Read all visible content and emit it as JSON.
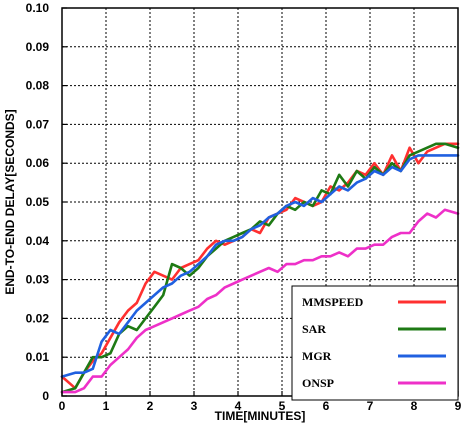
{
  "chart_data": {
    "type": "line",
    "title": "",
    "xlabel": "TIME[MINUTES]",
    "ylabel": "END-TO-END DELAY[SECONDS]",
    "xlim": [
      0,
      9
    ],
    "ylim": [
      0,
      0.1
    ],
    "x_ticks": [
      "0",
      "1",
      "2",
      "3",
      "4",
      "5",
      "6",
      "7",
      "8",
      "9"
    ],
    "y_ticks": [
      "0",
      "0.01",
      "0.02",
      "0.03",
      "0.04",
      "0.05",
      "0.06",
      "0.07",
      "0.08",
      "0.09",
      "0.10"
    ],
    "grid": true,
    "legend_position": "bottom-right",
    "series": [
      {
        "name": "MMSPEED",
        "color": "#ff3030",
        "x": [
          0,
          0.3,
          0.5,
          0.7,
          0.9,
          1.1,
          1.3,
          1.5,
          1.7,
          1.9,
          2.1,
          2.3,
          2.5,
          2.7,
          2.9,
          3.1,
          3.3,
          3.5,
          3.7,
          3.9,
          4.1,
          4.3,
          4.5,
          4.7,
          4.9,
          5.1,
          5.3,
          5.5,
          5.7,
          5.9,
          6.1,
          6.3,
          6.5,
          6.7,
          6.9,
          7.1,
          7.3,
          7.5,
          7.7,
          7.9,
          8.1,
          8.3,
          8.5,
          8.7,
          9.0
        ],
        "y": [
          0.005,
          0.002,
          0.006,
          0.009,
          0.011,
          0.015,
          0.019,
          0.022,
          0.024,
          0.029,
          0.032,
          0.031,
          0.03,
          0.033,
          0.034,
          0.035,
          0.038,
          0.04,
          0.039,
          0.04,
          0.041,
          0.043,
          0.042,
          0.046,
          0.047,
          0.048,
          0.051,
          0.05,
          0.049,
          0.05,
          0.054,
          0.053,
          0.055,
          0.058,
          0.057,
          0.06,
          0.057,
          0.062,
          0.058,
          0.064,
          0.06,
          0.063,
          0.064,
          0.065,
          0.065
        ]
      },
      {
        "name": "SAR",
        "color": "#1e7a14",
        "x": [
          0,
          0.3,
          0.5,
          0.7,
          0.9,
          1.1,
          1.3,
          1.5,
          1.7,
          1.9,
          2.1,
          2.3,
          2.5,
          2.7,
          2.9,
          3.1,
          3.3,
          3.5,
          3.7,
          3.9,
          4.1,
          4.3,
          4.5,
          4.7,
          4.9,
          5.1,
          5.3,
          5.5,
          5.7,
          5.9,
          6.1,
          6.3,
          6.5,
          6.7,
          6.9,
          7.1,
          7.3,
          7.5,
          7.7,
          7.9,
          8.1,
          8.3,
          8.5,
          8.7,
          9.0
        ],
        "y": [
          0.001,
          0.002,
          0.006,
          0.01,
          0.01,
          0.011,
          0.016,
          0.018,
          0.017,
          0.02,
          0.023,
          0.026,
          0.034,
          0.033,
          0.031,
          0.033,
          0.036,
          0.038,
          0.04,
          0.041,
          0.042,
          0.043,
          0.045,
          0.044,
          0.047,
          0.049,
          0.048,
          0.05,
          0.049,
          0.053,
          0.052,
          0.057,
          0.054,
          0.058,
          0.056,
          0.059,
          0.057,
          0.06,
          0.058,
          0.062,
          0.063,
          0.064,
          0.065,
          0.065,
          0.064
        ]
      },
      {
        "name": "MGR",
        "color": "#2060e0",
        "x": [
          0,
          0.3,
          0.5,
          0.7,
          0.9,
          1.1,
          1.3,
          1.5,
          1.7,
          1.9,
          2.1,
          2.3,
          2.5,
          2.7,
          2.9,
          3.1,
          3.3,
          3.5,
          3.7,
          3.9,
          4.1,
          4.3,
          4.5,
          4.7,
          4.9,
          5.1,
          5.3,
          5.5,
          5.7,
          5.9,
          6.1,
          6.3,
          6.5,
          6.7,
          6.9,
          7.1,
          7.3,
          7.5,
          7.7,
          7.9,
          8.1,
          8.3,
          8.5,
          8.7,
          9.0
        ],
        "y": [
          0.005,
          0.006,
          0.006,
          0.007,
          0.014,
          0.017,
          0.016,
          0.019,
          0.022,
          0.024,
          0.026,
          0.028,
          0.029,
          0.031,
          0.032,
          0.034,
          0.036,
          0.039,
          0.04,
          0.04,
          0.041,
          0.043,
          0.044,
          0.046,
          0.047,
          0.049,
          0.05,
          0.049,
          0.051,
          0.05,
          0.052,
          0.054,
          0.053,
          0.055,
          0.056,
          0.058,
          0.057,
          0.059,
          0.058,
          0.061,
          0.062,
          0.062,
          0.062,
          0.062,
          0.062
        ]
      },
      {
        "name": "ONSP",
        "color": "#ee30c8",
        "x": [
          0,
          0.3,
          0.5,
          0.7,
          0.9,
          1.1,
          1.3,
          1.5,
          1.7,
          1.9,
          2.1,
          2.3,
          2.5,
          2.7,
          2.9,
          3.1,
          3.3,
          3.5,
          3.7,
          3.9,
          4.1,
          4.3,
          4.5,
          4.7,
          4.9,
          5.1,
          5.3,
          5.5,
          5.7,
          5.9,
          6.1,
          6.3,
          6.5,
          6.7,
          6.9,
          7.1,
          7.3,
          7.5,
          7.7,
          7.9,
          8.1,
          8.3,
          8.5,
          8.7,
          9.0
        ],
        "y": [
          0.001,
          0.001,
          0.002,
          0.005,
          0.005,
          0.008,
          0.01,
          0.012,
          0.015,
          0.017,
          0.018,
          0.019,
          0.02,
          0.021,
          0.022,
          0.023,
          0.025,
          0.026,
          0.028,
          0.029,
          0.03,
          0.031,
          0.032,
          0.033,
          0.032,
          0.034,
          0.034,
          0.035,
          0.035,
          0.036,
          0.036,
          0.037,
          0.036,
          0.038,
          0.038,
          0.039,
          0.039,
          0.041,
          0.042,
          0.042,
          0.045,
          0.047,
          0.046,
          0.048,
          0.047
        ]
      }
    ]
  }
}
